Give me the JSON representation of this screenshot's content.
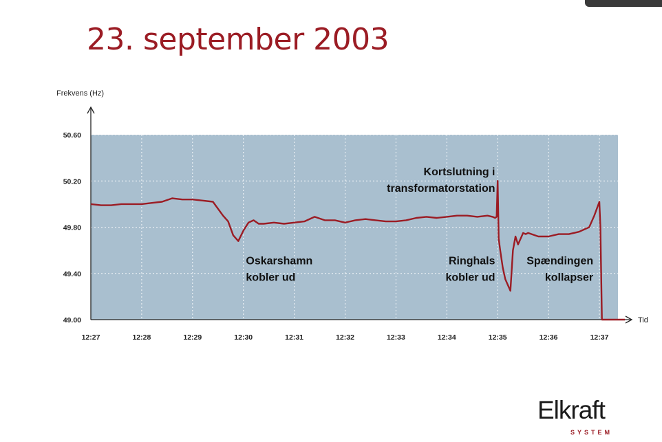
{
  "slide": {
    "title": "23. september 2003"
  },
  "chart_data": {
    "type": "line",
    "title": "23. september 2003",
    "xlabel": "Tid",
    "ylabel": "Frekvens (Hz)",
    "ylim": [
      49.0,
      50.6
    ],
    "xlim": [
      0,
      10.5
    ],
    "grid": true,
    "y_ticks": [
      "49.00",
      "49.40",
      "49.80",
      "50.20",
      "50.60"
    ],
    "y_tick_values": [
      49.0,
      49.4,
      49.8,
      50.2,
      50.6
    ],
    "x_ticks": [
      "12:27",
      "12:28",
      "12:29",
      "12:30",
      "12:31",
      "12:32",
      "12:33",
      "12:34",
      "12:35",
      "12:36",
      "12:37"
    ],
    "x_note": "x values are minutes after 12:27",
    "series": [
      {
        "name": "",
        "color": "#9b1c24",
        "x": [
          0,
          0.2,
          0.4,
          0.6,
          0.8,
          1.0,
          1.2,
          1.4,
          1.6,
          1.8,
          2.0,
          2.2,
          2.4,
          2.6,
          2.7,
          2.8,
          2.9,
          3.0,
          3.1,
          3.2,
          3.3,
          3.4,
          3.6,
          3.8,
          4.0,
          4.2,
          4.4,
          4.6,
          4.8,
          5.0,
          5.2,
          5.4,
          5.6,
          5.8,
          6.0,
          6.2,
          6.4,
          6.6,
          6.8,
          7.0,
          7.2,
          7.4,
          7.6,
          7.8,
          7.9,
          7.95,
          7.98,
          8.0,
          8.02,
          8.05,
          8.1,
          8.15,
          8.2,
          8.25,
          8.3,
          8.35,
          8.4,
          8.45,
          8.5,
          8.55,
          8.6,
          8.8,
          9.0,
          9.2,
          9.4,
          9.6,
          9.8,
          9.9,
          10.0,
          10.02,
          10.05,
          10.3,
          10.5
        ],
        "y": [
          50.0,
          49.99,
          49.99,
          50.0,
          50.0,
          50.0,
          50.01,
          50.02,
          50.05,
          50.04,
          50.04,
          50.03,
          50.02,
          49.9,
          49.85,
          49.73,
          49.68,
          49.77,
          49.84,
          49.86,
          49.83,
          49.83,
          49.84,
          49.83,
          49.84,
          49.85,
          49.89,
          49.86,
          49.86,
          49.84,
          49.86,
          49.87,
          49.86,
          49.85,
          49.85,
          49.86,
          49.88,
          49.89,
          49.88,
          49.89,
          49.9,
          49.9,
          49.89,
          49.9,
          49.89,
          49.88,
          49.89,
          50.2,
          49.7,
          49.6,
          49.45,
          49.35,
          49.3,
          49.25,
          49.6,
          49.72,
          49.65,
          49.7,
          49.75,
          49.74,
          49.75,
          49.72,
          49.72,
          49.74,
          49.74,
          49.76,
          49.8,
          49.9,
          50.02,
          49.8,
          49.0,
          49.0,
          49.0
        ]
      }
    ],
    "annotations": [
      {
        "lines": [
          "Oskarshamn",
          "kobler ud"
        ],
        "x": 3.05,
        "y": 49.48,
        "align": "left"
      },
      {
        "lines": [
          "Kortslutning i",
          "transformatorstation"
        ],
        "x": 7.95,
        "y": 50.25,
        "align": "right"
      },
      {
        "lines": [
          "Ringhals",
          "kobler ud"
        ],
        "x": 7.95,
        "y": 49.48,
        "align": "right"
      },
      {
        "lines": [
          "Spændingen",
          "kollapser"
        ],
        "x": 9.88,
        "y": 49.48,
        "align": "right"
      }
    ],
    "colors": {
      "plot_bg": "#a9bfcf",
      "grid": "#ffffff",
      "line": "#9b1c24",
      "axis": "#222222"
    }
  },
  "logo": {
    "name": "Elkraft",
    "sub": "SYSTEM"
  }
}
